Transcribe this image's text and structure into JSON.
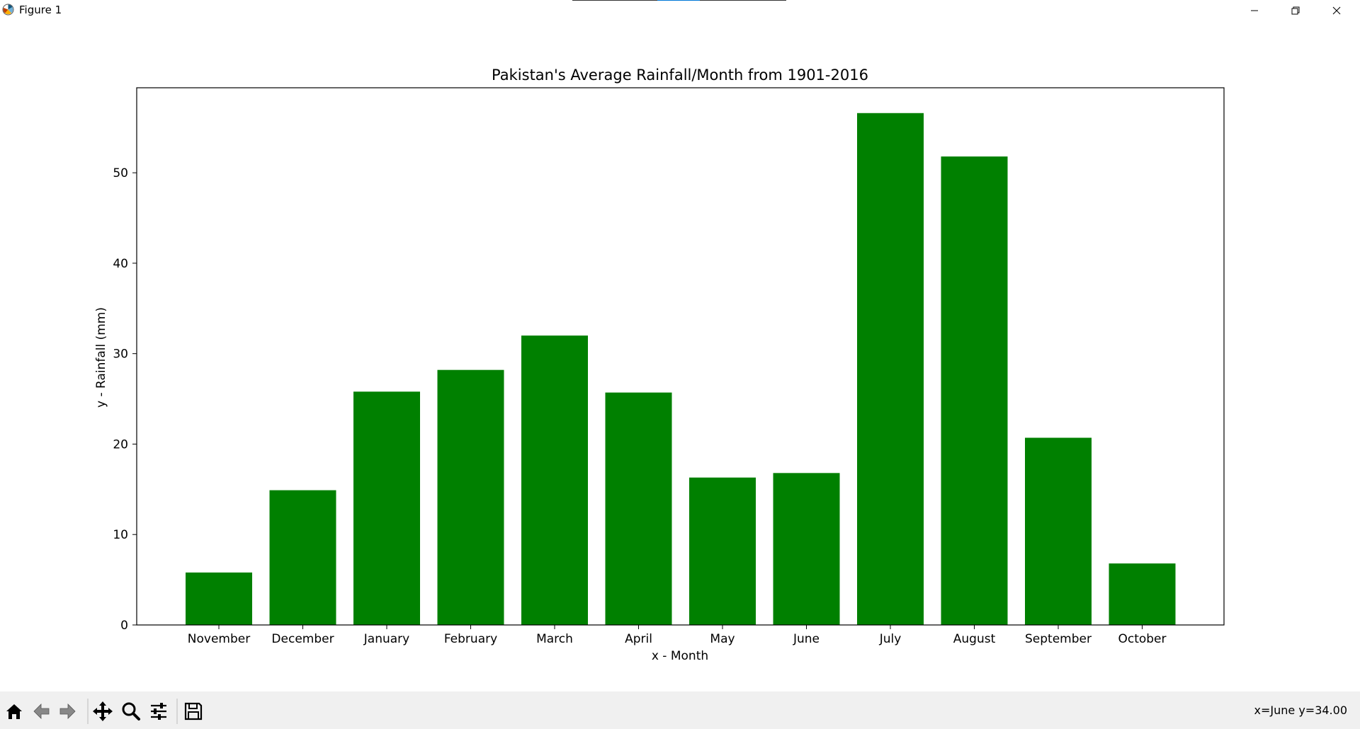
{
  "window": {
    "title": "Figure 1",
    "accent_color": "#0078d7"
  },
  "icons": {
    "app": "matplotlib-icon",
    "minimize": "minimize-icon",
    "maximize": "restore-icon",
    "close": "close-icon",
    "home": "home-icon",
    "back": "arrow-left-icon",
    "forward": "arrow-right-icon",
    "pan": "move-icon",
    "zoom": "zoom-icon",
    "configure": "sliders-icon",
    "save": "save-icon"
  },
  "toolbar": {
    "coords": "x=June y=34.00"
  },
  "chart_data": {
    "type": "bar",
    "title": "Pakistan's Average Rainfall/Month from 1901-2016",
    "xlabel": "x - Month",
    "ylabel": "y - Rainfall (mm)",
    "categories": [
      "November",
      "December",
      "January",
      "February",
      "March",
      "April",
      "May",
      "June",
      "July",
      "August",
      "September",
      "October"
    ],
    "values": [
      5.8,
      14.9,
      25.8,
      28.2,
      32.0,
      25.7,
      16.3,
      16.8,
      56.6,
      51.8,
      20.7,
      6.8
    ],
    "ylim": [
      0,
      59.4
    ],
    "yticks": [
      0,
      10,
      20,
      30,
      40,
      50
    ],
    "bar_color": "#008000",
    "grid": false,
    "legend": "none"
  }
}
